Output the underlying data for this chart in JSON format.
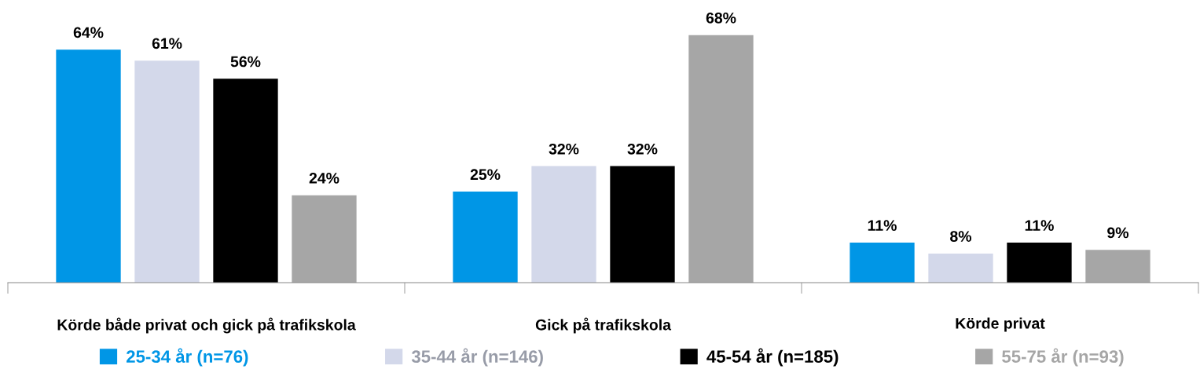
{
  "chart_data": {
    "type": "bar",
    "categories": [
      "Körde både privat och gick på trafikskola",
      "Gick på trafikskola",
      "Körde privat"
    ],
    "series": [
      {
        "name": "25-34 år (n=76)",
        "color": "#0096e6",
        "values": [
          64,
          25,
          11
        ],
        "value_labels": [
          "64%",
          "25%",
          "11%"
        ]
      },
      {
        "name": "35-44 år (n=146)",
        "color": "#d3d8ea",
        "values": [
          61,
          32,
          8
        ],
        "value_labels": [
          "61%",
          "32%",
          "8%"
        ]
      },
      {
        "name": "45-54 år (n=185)",
        "color": "#000000",
        "values": [
          56,
          32,
          11
        ],
        "value_labels": [
          "56%",
          "32%",
          "11%"
        ]
      },
      {
        "name": "55-75 år (n=93)",
        "color": "#a6a6a6",
        "values": [
          24,
          68,
          9
        ],
        "value_labels": [
          "24%",
          "68%",
          "9%"
        ]
      }
    ],
    "legend": "bottom",
    "grid": false
  }
}
